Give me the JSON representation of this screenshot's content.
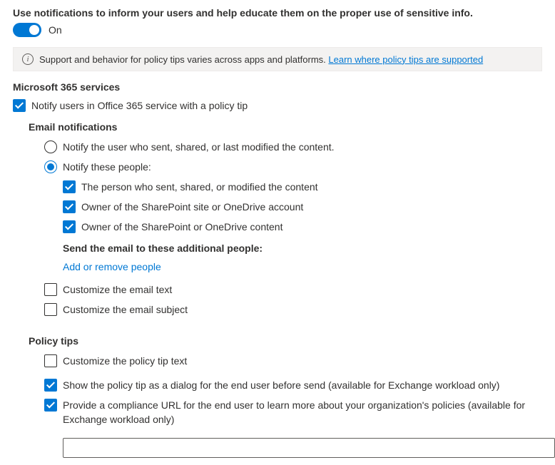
{
  "header": {
    "description": "Use notifications to inform your users and help educate them on the proper use of sensitive info.",
    "toggle_state": "On"
  },
  "info_bar": {
    "text": "Support and behavior for policy tips varies across apps and platforms.",
    "link_text": "Learn where policy tips are supported"
  },
  "services": {
    "title": "Microsoft 365 services",
    "notify_label": "Notify users in Office 365 service with a policy tip"
  },
  "email": {
    "title": "Email notifications",
    "radio1": "Notify the user who sent, shared, or last modified the content.",
    "radio2": "Notify these people:",
    "cb1": "The person who sent, shared, or modified the content",
    "cb2": "Owner of the SharePoint site or OneDrive account",
    "cb3": "Owner of the SharePoint or OneDrive content",
    "additional": "Send the email to these additional people:",
    "add_remove": "Add or remove people",
    "custom_text": "Customize the email text",
    "custom_subject": "Customize the email subject"
  },
  "tips": {
    "title": "Policy tips",
    "custom_tip": "Customize the policy tip text",
    "dialog": "Show the policy tip as a dialog for the end user before send (available for Exchange workload only)",
    "compliance_url": "Provide a compliance URL for the end user to learn more about your organization's policies (available for Exchange workload only)"
  }
}
